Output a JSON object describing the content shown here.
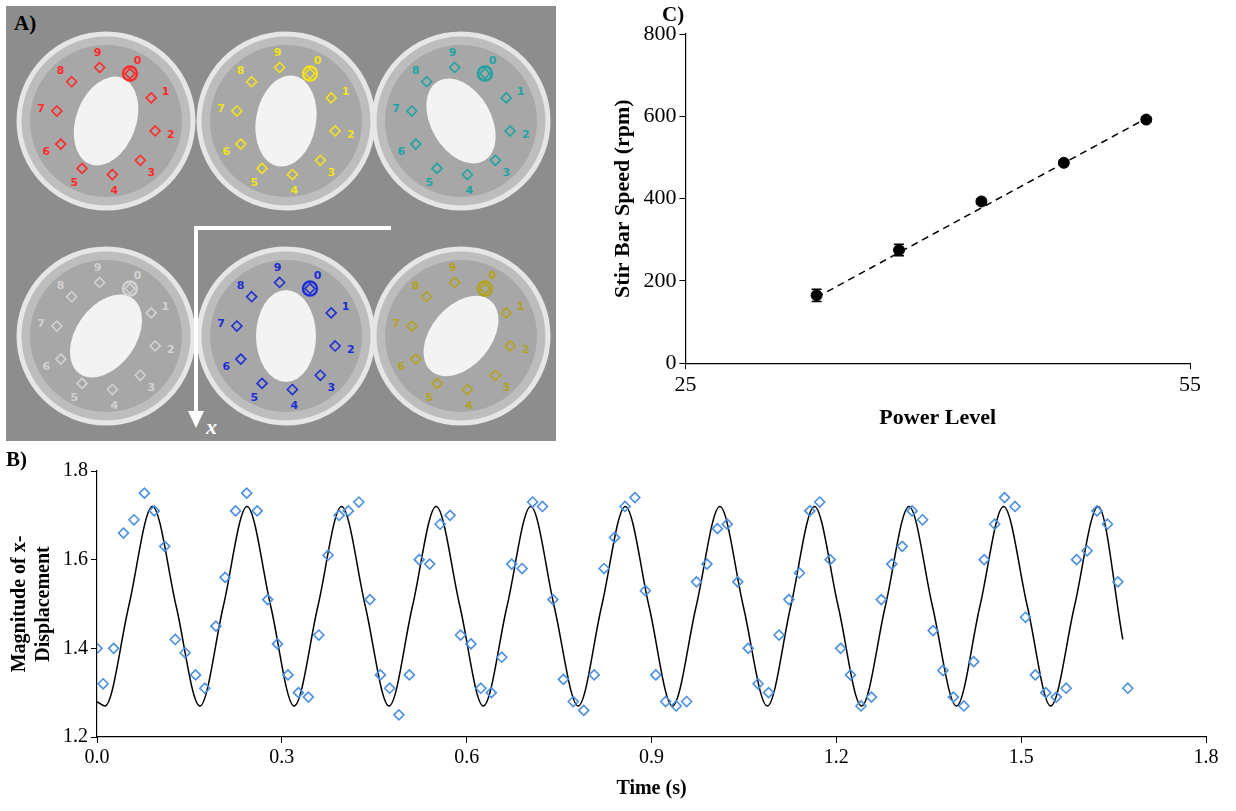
{
  "photo_panel": {
    "panel": "A)",
    "axis_label": "x",
    "wells": [
      {
        "color": "#ff2a2a",
        "labels": [
          "0",
          "1",
          "2",
          "3",
          "4",
          "5",
          "6",
          "7",
          "8",
          "9"
        ]
      },
      {
        "color": "#f2e21c",
        "labels": [
          "0",
          "1",
          "2",
          "3",
          "4",
          "5",
          "6",
          "7",
          "8",
          "9"
        ]
      },
      {
        "color": "#1fa3a3",
        "labels": [
          "0",
          "1",
          "2",
          "3",
          "4",
          "5",
          "6",
          "7",
          "8",
          "9"
        ]
      },
      {
        "color": "#d2d2d2",
        "labels": [
          "0",
          "1",
          "2",
          "3",
          "4",
          "5",
          "6",
          "7",
          "8",
          "9"
        ]
      },
      {
        "color": "#1e2ed6",
        "labels": [
          "0",
          "1",
          "2",
          "3",
          "4",
          "5",
          "6",
          "7",
          "8",
          "9"
        ]
      },
      {
        "color": "#b3a21c",
        "labels": [
          "0",
          "1",
          "2",
          "3",
          "4",
          "5",
          "6",
          "7",
          "8",
          "9"
        ]
      }
    ]
  },
  "chart_data": [
    {
      "panel": "B)",
      "type": "scatter",
      "x_label": "Time (s)",
      "y_label": "Magnitude of x-Displacement",
      "xlim": [
        0,
        1.8
      ],
      "xticks": [
        {
          "value": 0,
          "label": "0.0"
        },
        0.3,
        0.6,
        0.9,
        1.2,
        1.5,
        1.8
      ],
      "ylim": [
        1.2,
        1.8
      ],
      "yticks": [
        1.2,
        1.4,
        1.6,
        1.8
      ],
      "grid": false,
      "series": [
        {
          "type": "scatter",
          "marker": "diamond",
          "color": "#4a8fe0",
          "x": [
            0.0,
            0.01,
            0.027,
            0.043,
            0.06,
            0.077,
            0.093,
            0.11,
            0.127,
            0.143,
            0.16,
            0.175,
            0.193,
            0.208,
            0.225,
            0.243,
            0.26,
            0.277,
            0.293,
            0.31,
            0.327,
            0.343,
            0.36,
            0.375,
            0.393,
            0.408,
            0.425,
            0.443,
            0.46,
            0.475,
            0.49,
            0.507,
            0.523,
            0.54,
            0.557,
            0.573,
            0.59,
            0.607,
            0.623,
            0.64,
            0.657,
            0.673,
            0.69,
            0.707,
            0.723,
            0.74,
            0.757,
            0.773,
            0.79,
            0.807,
            0.823,
            0.84,
            0.857,
            0.873,
            0.89,
            0.907,
            0.923,
            0.94,
            0.957,
            0.973,
            0.99,
            1.007,
            1.023,
            1.04,
            1.057,
            1.073,
            1.09,
            1.107,
            1.123,
            1.14,
            1.157,
            1.173,
            1.19,
            1.207,
            1.223,
            1.24,
            1.257,
            1.273,
            1.29,
            1.307,
            1.323,
            1.34,
            1.357,
            1.373,
            1.39,
            1.407,
            1.423,
            1.44,
            1.457,
            1.473,
            1.49,
            1.507,
            1.523,
            1.54,
            1.557,
            1.573,
            1.59,
            1.607,
            1.623,
            1.64,
            1.657,
            1.673
          ],
          "values": [
            1.4,
            1.32,
            1.4,
            1.66,
            1.69,
            1.75,
            1.71,
            1.63,
            1.42,
            1.39,
            1.34,
            1.31,
            1.45,
            1.56,
            1.71,
            1.75,
            1.71,
            1.51,
            1.41,
            1.34,
            1.3,
            1.29,
            1.43,
            1.61,
            1.7,
            1.71,
            1.73,
            1.51,
            1.34,
            1.31,
            1.25,
            1.34,
            1.6,
            1.59,
            1.68,
            1.7,
            1.43,
            1.41,
            1.31,
            1.3,
            1.38,
            1.59,
            1.58,
            1.73,
            1.72,
            1.51,
            1.33,
            1.28,
            1.26,
            1.34,
            1.58,
            1.65,
            1.72,
            1.74,
            1.53,
            1.34,
            1.28,
            1.27,
            1.28,
            1.55,
            1.59,
            1.67,
            1.68,
            1.55,
            1.4,
            1.32,
            1.3,
            1.43,
            1.51,
            1.57,
            1.71,
            1.73,
            1.6,
            1.4,
            1.34,
            1.27,
            1.29,
            1.51,
            1.59,
            1.63,
            1.71,
            1.69,
            1.44,
            1.35,
            1.29,
            1.27,
            1.37,
            1.6,
            1.68,
            1.74,
            1.72,
            1.47,
            1.34,
            1.3,
            1.29,
            1.31,
            1.6,
            1.62,
            1.71,
            1.68,
            1.55,
            1.31
          ]
        },
        {
          "type": "line",
          "line_style": "solid",
          "color": "#000000",
          "x": [
            0,
            0.013,
            0.0515,
            0.09,
            0.1285,
            0.167,
            0.205,
            0.2435,
            0.282,
            0.32,
            0.3585,
            0.397,
            0.4355,
            0.474,
            0.512,
            0.5505,
            0.589,
            0.627,
            0.6655,
            0.704,
            0.742,
            0.781,
            0.819,
            0.8575,
            0.896,
            0.934,
            0.9725,
            1.011,
            1.049,
            1.088,
            1.126,
            1.1645,
            1.203,
            1.241,
            1.2795,
            1.318,
            1.356,
            1.395,
            1.433,
            1.4715,
            1.51,
            1.548,
            1.5865,
            1.625,
            1.665
          ],
          "values": [
            1.28,
            1.27,
            1.495,
            1.72,
            1.495,
            1.27,
            1.495,
            1.72,
            1.495,
            1.27,
            1.495,
            1.72,
            1.495,
            1.27,
            1.495,
            1.72,
            1.495,
            1.27,
            1.495,
            1.72,
            1.495,
            1.27,
            1.495,
            1.72,
            1.495,
            1.27,
            1.495,
            1.72,
            1.495,
            1.27,
            1.495,
            1.72,
            1.495,
            1.27,
            1.495,
            1.72,
            1.495,
            1.27,
            1.495,
            1.72,
            1.495,
            1.27,
            1.495,
            1.72,
            1.42
          ]
        }
      ]
    },
    {
      "panel": "C)",
      "type": "scatter",
      "x_label": "Power Level",
      "y_label": "Stir Bar Speed (rpm)",
      "xlim": [
        25,
        55
      ],
      "xticks": [
        25,
        55
      ],
      "ylim": [
        0,
        800
      ],
      "yticks": [
        0,
        200,
        400,
        600,
        800
      ],
      "grid": false,
      "series": [
        {
          "type": "scatter",
          "marker": "circle",
          "color": "#000000",
          "x": [
            32.8,
            37.7,
            42.6,
            47.5,
            52.4
          ],
          "values": [
            165,
            275,
            393,
            487,
            592
          ],
          "errors": [
            15,
            14,
            6,
            6,
            6
          ]
        },
        {
          "type": "line",
          "line_style": "dashed",
          "color": "#000000",
          "x": [
            32.8,
            52.4
          ],
          "values": [
            160,
            595
          ]
        }
      ]
    }
  ]
}
